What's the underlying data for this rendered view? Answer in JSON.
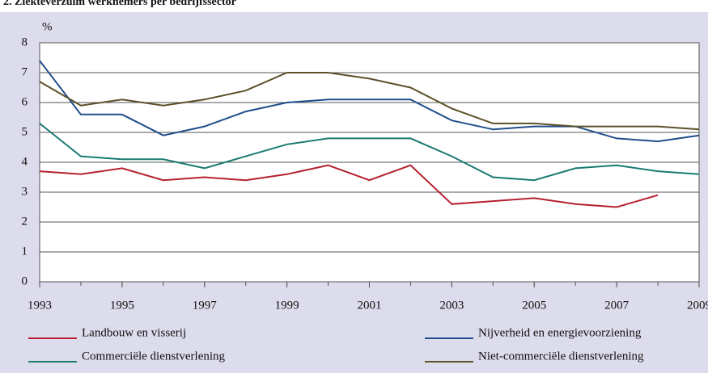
{
  "chart_data": {
    "type": "line",
    "title": "2. Ziekteverzuim werknemers per bedrijfssector",
    "ylabel": "%",
    "x": [
      1993,
      1994,
      1995,
      1996,
      1997,
      1998,
      1999,
      2000,
      2001,
      2002,
      2003,
      2004,
      2005,
      2006,
      2007,
      2008,
      2009
    ],
    "xlim": [
      1993,
      2009
    ],
    "xticks": [
      1993,
      1995,
      1997,
      1999,
      2001,
      2003,
      2005,
      2007,
      2009
    ],
    "ylim": [
      0,
      8
    ],
    "yticks": [
      0,
      1,
      2,
      3,
      4,
      5,
      6,
      7,
      8
    ],
    "grid": true,
    "series": [
      {
        "name": "Landbouw en visserij",
        "color": "#b5212f",
        "values": [
          3.7,
          3.6,
          3.8,
          3.4,
          3.5,
          3.4,
          3.6,
          3.9,
          3.4,
          3.9,
          2.6,
          2.7,
          2.8,
          2.6,
          2.5,
          2.9,
          null
        ]
      },
      {
        "name": "Nijverheid en energievoorziening",
        "color": "#1f4e8c",
        "values": [
          7.4,
          5.6,
          5.6,
          4.9,
          5.2,
          5.7,
          6.0,
          6.1,
          6.1,
          6.1,
          5.4,
          5.1,
          5.2,
          5.2,
          4.8,
          4.7,
          4.9
        ]
      },
      {
        "name": "Commerciële dienstverlening",
        "color": "#1a7a72",
        "values": [
          5.3,
          4.2,
          4.1,
          4.1,
          3.8,
          4.2,
          4.6,
          4.8,
          4.8,
          4.8,
          4.2,
          3.5,
          3.4,
          3.8,
          3.9,
          3.7,
          3.6
        ]
      },
      {
        "name": "Niet-commerciële dienstverlening",
        "color": "#5c5129",
        "values": [
          6.7,
          5.9,
          6.1,
          5.9,
          6.1,
          6.4,
          7.0,
          7.0,
          6.8,
          6.5,
          5.8,
          5.3,
          5.3,
          5.2,
          5.2,
          5.2,
          5.1
        ]
      }
    ]
  }
}
